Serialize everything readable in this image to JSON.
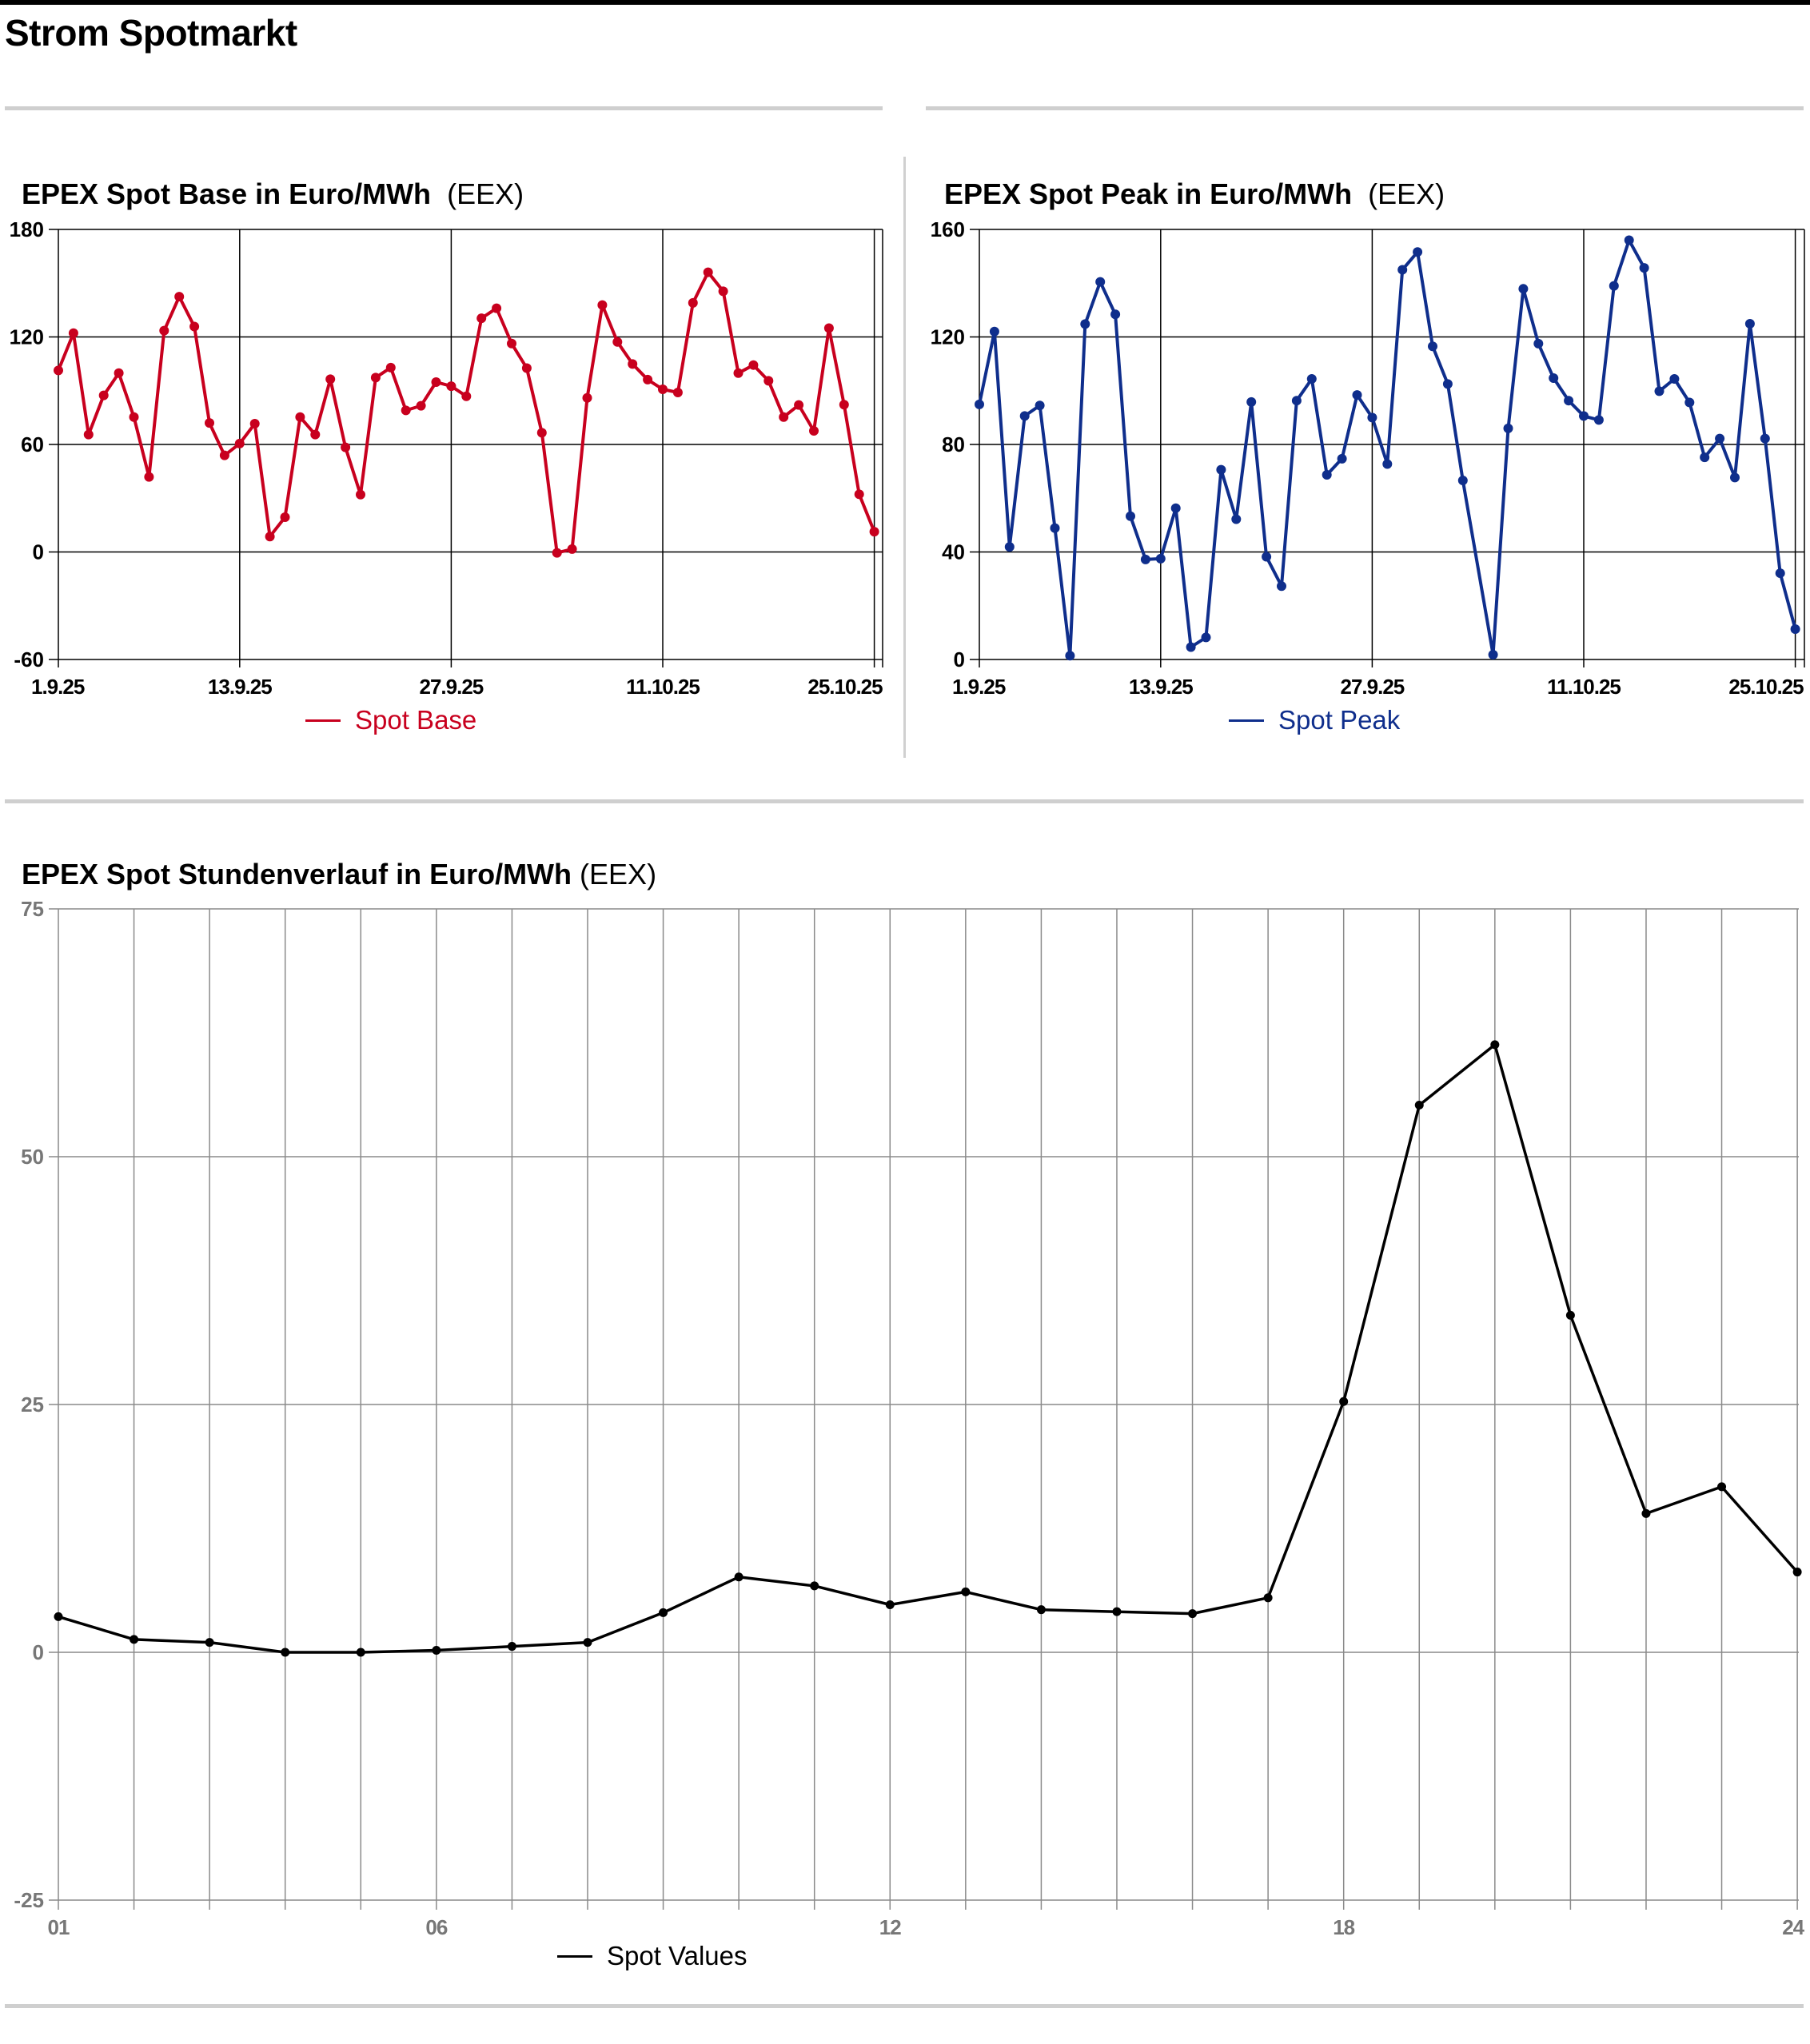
{
  "page": {
    "title": "Strom Spotmarkt"
  },
  "colors": {
    "base": "#c8001e",
    "peak": "#0f2e8c",
    "hourly": "#000000"
  },
  "chart_data": [
    {
      "id": "base",
      "type": "line",
      "title": "EPEX Spot Base in Euro/MWh",
      "source": "(EEX)",
      "legend": "Spot Base",
      "legend_position": "bottom-center",
      "ylim": [
        -60,
        180
      ],
      "yticks": [
        "180",
        "120",
        "60",
        "0",
        "-60"
      ],
      "ytick_values": [
        180,
        120,
        60,
        0,
        -60
      ],
      "xticks": [
        {
          "index": 0,
          "label": "1.9.25"
        },
        {
          "index": 12,
          "label": "13.9.25"
        },
        {
          "index": 26,
          "label": "27.9.25"
        },
        {
          "index": 40,
          "label": "11.10.25"
        },
        {
          "index": 54,
          "label": "25.10.25"
        }
      ],
      "grid": true,
      "values": [
        101.3,
        122.1,
        65.5,
        87.4,
        99.8,
        75.3,
        41.9,
        123.5,
        142.5,
        125.8,
        72.0,
        53.9,
        60.5,
        71.6,
        8.6,
        19.4,
        75.3,
        65.5,
        96.4,
        58.4,
        32.0,
        97.3,
        102.9,
        79.0,
        81.6,
        94.8,
        92.5,
        86.9,
        130.4,
        136.0,
        116.3,
        102.6,
        66.5,
        -0.5,
        1.6,
        86.0,
        137.8,
        117.2,
        104.9,
        96.2,
        90.8,
        89.0,
        139.0,
        156.1,
        145.5,
        99.8,
        104.3,
        95.5,
        75.3,
        82.0,
        67.6,
        124.9,
        82.2,
        32.2,
        11.3
      ]
    },
    {
      "id": "peak",
      "type": "line",
      "title": "EPEX Spot Peak in Euro/MWh",
      "source": "(EEX)",
      "legend": "Spot Peak",
      "legend_position": "bottom-center",
      "ylim": [
        0,
        160
      ],
      "yticks": [
        "160",
        "120",
        "80",
        "40",
        "0"
      ],
      "ytick_values": [
        160,
        120,
        80,
        40,
        0
      ],
      "xticks": [
        {
          "index": 0,
          "label": "1.9.25"
        },
        {
          "index": 12,
          "label": "13.9.25"
        },
        {
          "index": 26,
          "label": "27.9.25"
        },
        {
          "index": 40,
          "label": "11.10.25"
        },
        {
          "index": 54,
          "label": "25.10.25"
        }
      ],
      "grid": true,
      "values": [
        94.9,
        122.0,
        41.9,
        90.6,
        94.5,
        48.9,
        1.4,
        124.8,
        140.5,
        128.4,
        53.3,
        37.2,
        37.5,
        56.3,
        4.6,
        8.2,
        70.6,
        52.2,
        95.8,
        38.2,
        27.3,
        96.3,
        104.4,
        68.7,
        74.7,
        98.4,
        90.0,
        72.7,
        145.0,
        151.6,
        116.5,
        102.5,
        66.6,
        null,
        1.8,
        86.0,
        137.9,
        117.5,
        104.7,
        96.3,
        90.6,
        89.1,
        139.0,
        156.0,
        145.7,
        99.8,
        104.4,
        95.6,
        75.2,
        82.2,
        67.7,
        124.9,
        82.2,
        32.1,
        11.3
      ]
    },
    {
      "id": "hourly",
      "type": "line",
      "title": "EPEX Spot Stundenverlauf in Euro/MWh",
      "source": "(EEX)",
      "legend": "Spot Values",
      "legend_position": "bottom-left",
      "ylim": [
        -25,
        75
      ],
      "yticks": [
        "75",
        "50",
        "25",
        "0",
        "-25"
      ],
      "ytick_values": [
        75,
        50,
        25,
        0,
        -25
      ],
      "xticks": [
        {
          "index": 0,
          "label": "01"
        },
        {
          "index": 5,
          "label": "06"
        },
        {
          "index": 11,
          "label": "12"
        },
        {
          "index": 17,
          "label": "18"
        },
        {
          "index": 23,
          "label": "24"
        }
      ],
      "grid": true,
      "values": [
        3.6,
        1.3,
        1.0,
        0.0,
        0.0,
        0.2,
        0.6,
        1.0,
        4.0,
        7.6,
        6.7,
        4.8,
        6.1,
        4.3,
        4.1,
        3.9,
        5.5,
        25.3,
        55.2,
        61.3,
        34.0,
        14.0,
        16.7,
        8.1
      ]
    }
  ]
}
